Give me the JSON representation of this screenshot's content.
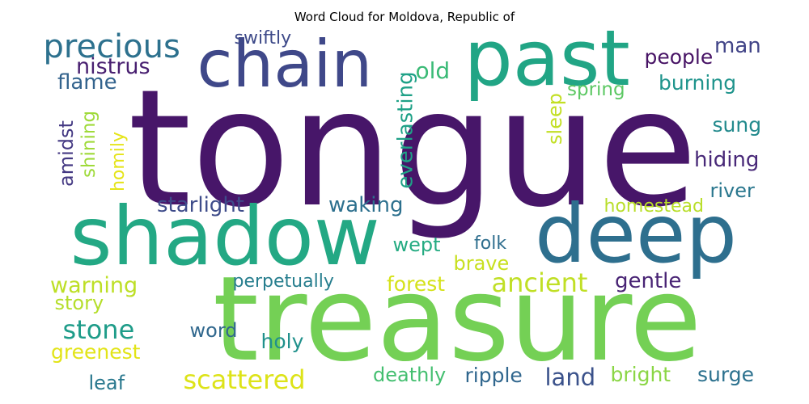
{
  "title": "Word Cloud for Moldova, Republic of",
  "words": [
    {
      "text": "tongue",
      "color": "#471669"
    },
    {
      "text": "treasure",
      "color": "#74d055"
    },
    {
      "text": "shadow",
      "color": "#23a884"
    },
    {
      "text": "deep",
      "color": "#2e6f8e"
    },
    {
      "text": "past",
      "color": "#21a585"
    },
    {
      "text": "chain",
      "color": "#3f4889"
    },
    {
      "text": "precious",
      "color": "#2d718e"
    },
    {
      "text": "nistrus",
      "color": "#481f70"
    },
    {
      "text": "flame",
      "color": "#33638d"
    },
    {
      "text": "old",
      "color": "#3aba76"
    },
    {
      "text": "swiftly",
      "color": "#3e4a89"
    },
    {
      "text": "people",
      "color": "#471365"
    },
    {
      "text": "man",
      "color": "#414487"
    },
    {
      "text": "burning",
      "color": "#1f948c"
    },
    {
      "text": "spring",
      "color": "#5cc863"
    },
    {
      "text": "sung",
      "color": "#238a8d"
    },
    {
      "text": "hiding",
      "color": "#482878"
    },
    {
      "text": "river",
      "color": "#2a778e"
    },
    {
      "text": "homestead",
      "color": "#b8de29"
    },
    {
      "text": "amidst",
      "color": "#443983"
    },
    {
      "text": "shining",
      "color": "#9fda3a"
    },
    {
      "text": "homily",
      "color": "#e5e419"
    },
    {
      "text": "everlasting",
      "color": "#1fa187"
    },
    {
      "text": "sleep",
      "color": "#c2df23"
    },
    {
      "text": "starlight",
      "color": "#3e4c8a"
    },
    {
      "text": "waking",
      "color": "#2d708e"
    },
    {
      "text": "wept",
      "color": "#25ab82"
    },
    {
      "text": "folk",
      "color": "#2e6e8e"
    },
    {
      "text": "brave",
      "color": "#c8e020"
    },
    {
      "text": "ancient",
      "color": "#c0df25"
    },
    {
      "text": "gentle",
      "color": "#482374"
    },
    {
      "text": "warning",
      "color": "#bddf26"
    },
    {
      "text": "perpetually",
      "color": "#277e8e"
    },
    {
      "text": "forest",
      "color": "#d5e21a"
    },
    {
      "text": "story",
      "color": "#b5de2b"
    },
    {
      "text": "stone",
      "color": "#1e9c89"
    },
    {
      "text": "word",
      "color": "#31688e"
    },
    {
      "text": "holy",
      "color": "#21918c"
    },
    {
      "text": "greenest",
      "color": "#e2e418"
    },
    {
      "text": "scattered",
      "color": "#dde318"
    },
    {
      "text": "leaf",
      "color": "#2a788e"
    },
    {
      "text": "deathly",
      "color": "#44bf70"
    },
    {
      "text": "ripple",
      "color": "#31678e"
    },
    {
      "text": "land",
      "color": "#3b528b"
    },
    {
      "text": "bright",
      "color": "#8bd646"
    },
    {
      "text": "surge",
      "color": "#2c718e"
    }
  ]
}
